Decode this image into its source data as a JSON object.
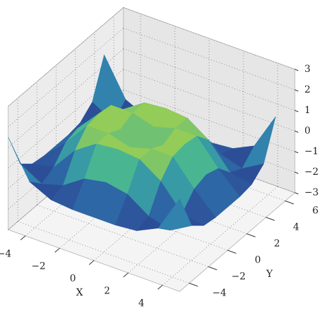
{
  "chart_data": {
    "type": "surface3d",
    "xlabel": "X",
    "ylabel": "Y",
    "x": [
      -5,
      -3.75,
      -2.5,
      -1.25,
      0,
      1.25,
      2.5,
      3.75,
      5
    ],
    "y": [
      -5,
      -3.75,
      -2.5,
      -1.25,
      0,
      1.25,
      2.5,
      3.75,
      5
    ],
    "z": [
      [
        1.5,
        -0.3,
        -0.8,
        -0.9,
        -0.9,
        -0.9,
        -0.8,
        -0.3,
        1.5
      ],
      [
        -0.3,
        -0.9,
        -0.6,
        0.1,
        0.3,
        0.1,
        -0.6,
        -0.9,
        -0.3
      ],
      [
        -0.8,
        -0.6,
        0.6,
        1.3,
        1.4,
        1.3,
        0.6,
        -0.6,
        -0.8
      ],
      [
        -0.9,
        0.1,
        1.3,
        1.3,
        1.0,
        1.3,
        1.3,
        0.1,
        -0.9
      ],
      [
        -0.9,
        0.3,
        1.4,
        1.0,
        0.8,
        1.0,
        1.4,
        0.3,
        -0.9
      ],
      [
        -0.9,
        0.1,
        1.3,
        1.3,
        1.0,
        1.3,
        1.3,
        0.1,
        -0.9
      ],
      [
        -0.8,
        -0.6,
        0.6,
        1.3,
        1.4,
        1.3,
        0.6,
        -0.6,
        -0.8
      ],
      [
        -0.3,
        -0.9,
        -0.6,
        0.1,
        0.3,
        0.1,
        -0.6,
        -0.9,
        -0.3
      ],
      [
        1.5,
        -0.3,
        -0.8,
        -0.9,
        -0.9,
        -0.9,
        -0.8,
        -0.3,
        1.5
      ]
    ],
    "xlim": [
      -5,
      5
    ],
    "ylim": [
      -5,
      7
    ],
    "zlim": [
      -3,
      3
    ],
    "xticks": [
      {
        "value": -4,
        "label": "−4"
      },
      {
        "value": -2,
        "label": "−2"
      },
      0,
      2,
      4
    ],
    "yticks": [
      {
        "value": -4,
        "label": "−4"
      },
      {
        "value": -2,
        "label": "−2"
      },
      0,
      2,
      4,
      6
    ],
    "zticks": [
      {
        "value": -3,
        "label": "−3"
      },
      {
        "value": -2,
        "label": "−2"
      },
      {
        "value": -1,
        "label": "−1"
      },
      0,
      1,
      2,
      3
    ],
    "grid": true,
    "colors": [
      "#2b3a8c",
      "#2f7bb0",
      "#3fb29a",
      "#b9d83a"
    ]
  }
}
